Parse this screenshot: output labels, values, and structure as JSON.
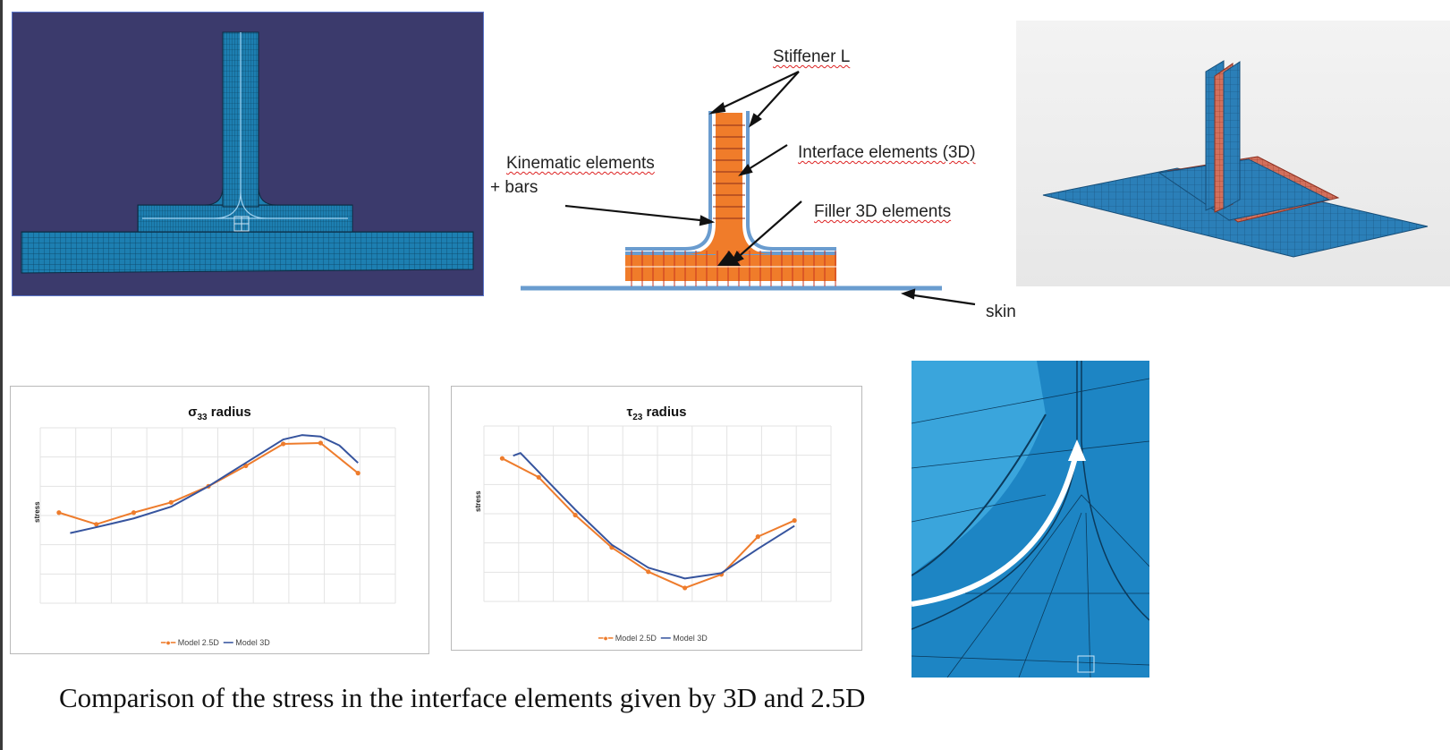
{
  "figure": {
    "labels": {
      "stiffener": "Stiffener L",
      "interface": "Interface elements (3D)",
      "kinematic_line1": "Kinematic elements",
      "kinematic_line2": "+ bars",
      "filler": "Filler 3D elements",
      "skin": "skin"
    },
    "caption": "Comparison of the stress in the interface elements given by 3D and 2.5D"
  },
  "chart_data": [
    {
      "type": "line",
      "title_symbol": "σ",
      "title_subscript": "33",
      "title_rest": " radius",
      "ylabel": "stress",
      "series": [
        {
          "name": "Model 2.5D",
          "color": "#ee7c2c",
          "x": [
            0.0,
            1.0,
            2.0,
            3.0,
            4.0,
            5.0,
            6.0,
            7.0,
            8.0
          ],
          "y": [
            3.1,
            2.7,
            3.1,
            3.45,
            4.0,
            4.7,
            5.45,
            5.48,
            4.45
          ]
        },
        {
          "name": "Model 3D",
          "color": "#36549e",
          "x": [
            0.3,
            1.0,
            2.0,
            3.0,
            4.0,
            5.0,
            6.0,
            6.5,
            7.0,
            7.5,
            8.0
          ],
          "y": [
            2.4,
            2.6,
            2.9,
            3.3,
            4.0,
            4.8,
            5.6,
            5.75,
            5.7,
            5.4,
            4.8
          ]
        }
      ],
      "xlim": [
        -0.5,
        9.0
      ],
      "ylim": [
        0,
        6
      ]
    },
    {
      "type": "line",
      "title_symbol": "τ",
      "title_subscript": "23",
      "title_rest": " radius",
      "ylabel": "stress",
      "series": [
        {
          "name": "Model 2.5D",
          "color": "#ee7c2c",
          "x": [
            0.0,
            1.0,
            2.0,
            3.0,
            4.0,
            5.0,
            6.0,
            7.0,
            8.0
          ],
          "y": [
            4.8,
            4.1,
            2.7,
            1.5,
            0.6,
            0.0,
            0.5,
            1.9,
            2.5
          ]
        },
        {
          "name": "Model 3D",
          "color": "#36549e",
          "x": [
            0.3,
            0.5,
            1.0,
            2.0,
            3.0,
            4.0,
            5.0,
            6.0,
            7.0,
            8.0
          ],
          "y": [
            4.9,
            5.0,
            4.3,
            2.9,
            1.6,
            0.75,
            0.35,
            0.55,
            1.45,
            2.3
          ]
        }
      ],
      "xlim": [
        -0.5,
        9.0
      ],
      "ylim": [
        -0.5,
        6
      ]
    }
  ]
}
